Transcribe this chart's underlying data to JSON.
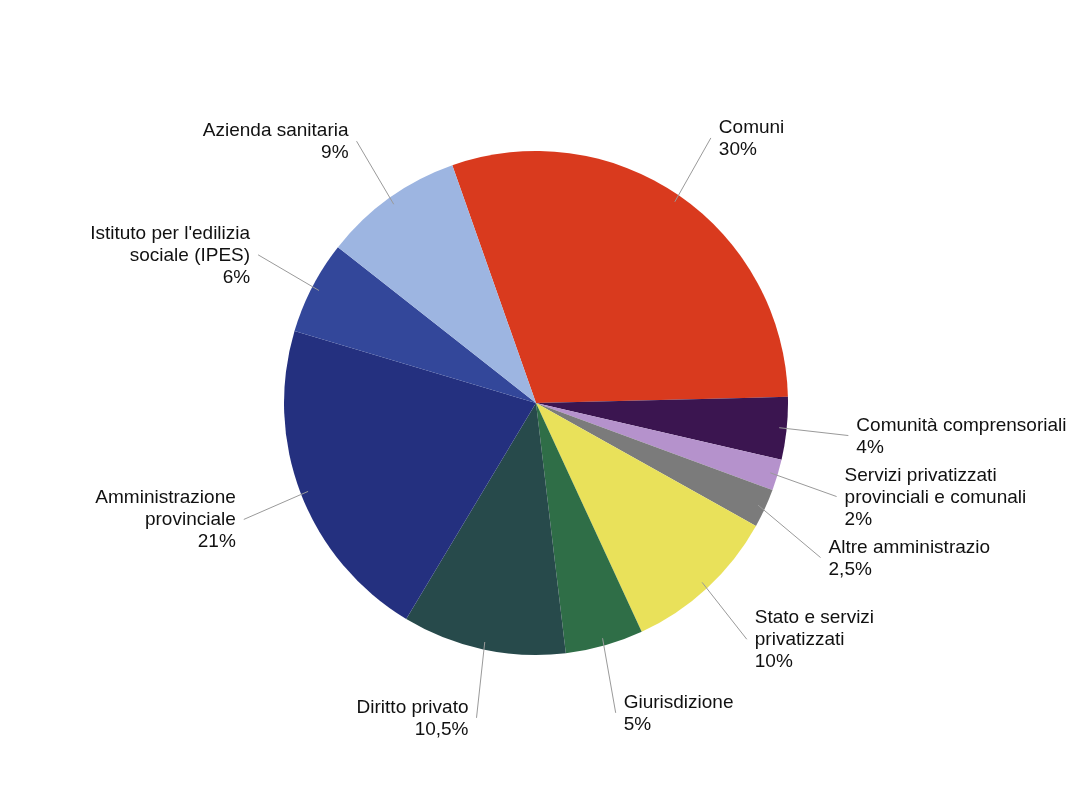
{
  "chart_data": {
    "type": "pie",
    "categories": [
      "Comuni",
      "Comunità comprensoriali",
      "Servizi privatizzati provinciali e comunali",
      "Altre amministrazio",
      "Stato e servizi privatizzati",
      "Giurisdizione",
      "Diritto privato",
      "Amministrazione provinciale",
      "Istituto per l'edilizia sociale (IPES)",
      "Azienda sanitaria"
    ],
    "values": [
      30,
      4,
      2,
      2.5,
      10,
      5,
      10.5,
      21,
      6,
      9
    ],
    "value_labels": [
      "30%",
      "4%",
      "2%",
      "2,5%",
      "10%",
      "5%",
      "10,5%",
      "21%",
      "6%",
      "9%"
    ],
    "colors": [
      "#d93a1e",
      "#3b1550",
      "#b592cc",
      "#7b7b7b",
      "#e9e15a",
      "#2f6e47",
      "#274a4b",
      "#24307f",
      "#33479a",
      "#9db5e1"
    ]
  }
}
